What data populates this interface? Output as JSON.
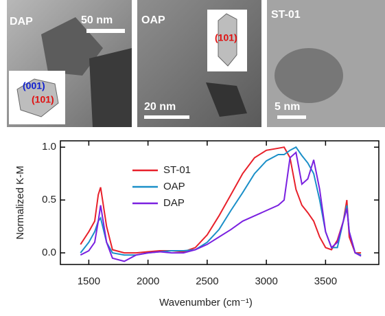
{
  "panels": [
    {
      "label": "DAP",
      "scale": "50 nm",
      "facets": [
        "(001)",
        "(101)"
      ]
    },
    {
      "label": "OAP",
      "scale": "20 nm",
      "facets": [
        "(101)"
      ]
    },
    {
      "label": "ST-01",
      "scale": "5 nm"
    }
  ],
  "chart_data": {
    "type": "line",
    "xlabel": "Wavenumber (cm⁻¹)",
    "ylabel": "Normalized K-M",
    "x": [
      1430,
      1500,
      1550,
      1580,
      1600,
      1650,
      1700,
      1800,
      1900,
      2000,
      2100,
      2200,
      2300,
      2400,
      2500,
      2600,
      2700,
      2800,
      2900,
      3000,
      3100,
      3150,
      3200,
      3250,
      3300,
      3350,
      3400,
      3450,
      3500,
      3550,
      3600,
      3650,
      3680,
      3700,
      3750,
      3800
    ],
    "series": [
      {
        "name": "ST-01",
        "color": "#e8202a",
        "values": [
          0.08,
          0.2,
          0.3,
          0.55,
          0.62,
          0.25,
          0.03,
          0.0,
          0.0,
          0.01,
          0.02,
          0.02,
          0.01,
          0.05,
          0.17,
          0.35,
          0.55,
          0.75,
          0.9,
          0.97,
          0.99,
          1.0,
          0.9,
          0.6,
          0.45,
          0.38,
          0.3,
          0.15,
          0.05,
          0.03,
          0.12,
          0.3,
          0.5,
          0.15,
          0.0,
          0.0
        ]
      },
      {
        "name": "OAP",
        "color": "#1a8fc8",
        "values": [
          0.0,
          0.1,
          0.2,
          0.3,
          0.33,
          0.1,
          0.0,
          -0.02,
          -0.02,
          0.0,
          0.01,
          0.02,
          0.02,
          0.03,
          0.1,
          0.22,
          0.4,
          0.57,
          0.75,
          0.87,
          0.93,
          0.93,
          0.97,
          1.0,
          0.92,
          0.85,
          0.75,
          0.5,
          0.2,
          0.05,
          0.05,
          0.3,
          0.45,
          0.2,
          0.0,
          -0.02
        ]
      },
      {
        "name": "DAP",
        "color": "#7a20e0",
        "values": [
          -0.02,
          0.02,
          0.1,
          0.3,
          0.45,
          0.1,
          -0.05,
          -0.08,
          -0.02,
          0.0,
          0.01,
          0.0,
          0.0,
          0.03,
          0.08,
          0.15,
          0.22,
          0.3,
          0.35,
          0.4,
          0.45,
          0.5,
          0.9,
          0.95,
          0.65,
          0.7,
          0.88,
          0.6,
          0.2,
          0.05,
          0.1,
          0.3,
          0.42,
          0.2,
          0.0,
          -0.03
        ]
      }
    ],
    "xlim": [
      1260,
      3950
    ],
    "ylim": [
      -0.11,
      1.06
    ],
    "xticks": [
      1500,
      2000,
      2500,
      3000,
      3500
    ],
    "yticks": [
      {
        "value": 0,
        "label": "0.0"
      },
      0.5,
      {
        "value": 1,
        "label": "1.0"
      }
    ],
    "legend": "upper-left"
  }
}
